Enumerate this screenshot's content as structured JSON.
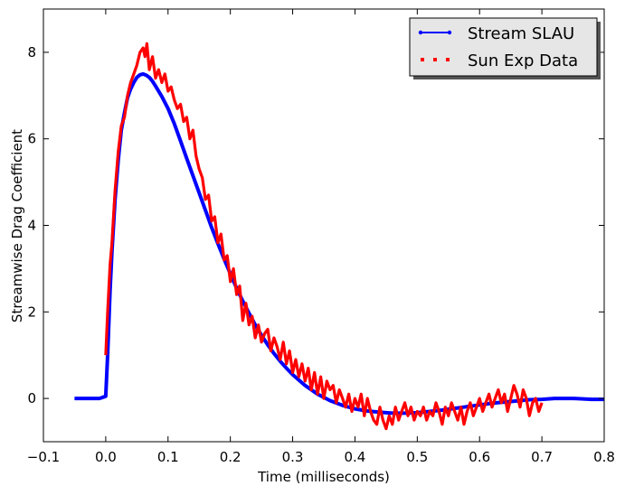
{
  "chart_data": {
    "type": "line",
    "title": "",
    "xlabel": "Time (milliseconds)",
    "ylabel": "Streamwise Drag Coefficient",
    "xlim": [
      -0.1,
      0.8
    ],
    "ylim": [
      -1,
      9
    ],
    "xticks": [
      -0.1,
      0.0,
      0.1,
      0.2,
      0.3,
      0.4,
      0.5,
      0.6,
      0.7,
      0.8
    ],
    "xtick_labels": [
      "−0.1",
      "0.0",
      "0.1",
      "0.2",
      "0.3",
      "0.4",
      "0.5",
      "0.6",
      "0.7",
      "0.8"
    ],
    "yticks": [
      0,
      2,
      4,
      6,
      8
    ],
    "ytick_labels": [
      "0",
      "2",
      "4",
      "6",
      "8"
    ],
    "grid": false,
    "legend_position": "top-right",
    "series": [
      {
        "name": "Stream SLAU",
        "color": "#0000ff",
        "style": "solid-dot",
        "x": [
          -0.05,
          -0.03,
          -0.01,
          0.0,
          0.003,
          0.007,
          0.01,
          0.015,
          0.02,
          0.025,
          0.03,
          0.035,
          0.04,
          0.045,
          0.05,
          0.055,
          0.06,
          0.065,
          0.07,
          0.075,
          0.08,
          0.09,
          0.1,
          0.11,
          0.12,
          0.13,
          0.14,
          0.15,
          0.16,
          0.17,
          0.18,
          0.19,
          0.2,
          0.21,
          0.22,
          0.23,
          0.24,
          0.25,
          0.26,
          0.27,
          0.28,
          0.29,
          0.3,
          0.32,
          0.34,
          0.36,
          0.38,
          0.4,
          0.42,
          0.44,
          0.46,
          0.48,
          0.5,
          0.52,
          0.54,
          0.56,
          0.58,
          0.6,
          0.62,
          0.65,
          0.68,
          0.7,
          0.72,
          0.75,
          0.78,
          0.8
        ],
        "y": [
          0.0,
          0.0,
          0.0,
          0.05,
          1.0,
          2.5,
          3.4,
          4.6,
          5.5,
          6.2,
          6.6,
          6.95,
          7.15,
          7.3,
          7.42,
          7.48,
          7.5,
          7.47,
          7.42,
          7.33,
          7.22,
          6.98,
          6.7,
          6.35,
          5.95,
          5.55,
          5.15,
          4.75,
          4.35,
          3.95,
          3.58,
          3.22,
          2.88,
          2.55,
          2.25,
          1.97,
          1.7,
          1.46,
          1.24,
          1.04,
          0.86,
          0.7,
          0.55,
          0.3,
          0.1,
          -0.05,
          -0.16,
          -0.24,
          -0.29,
          -0.32,
          -0.34,
          -0.34,
          -0.33,
          -0.3,
          -0.27,
          -0.23,
          -0.19,
          -0.15,
          -0.11,
          -0.07,
          -0.03,
          -0.02,
          0.0,
          0.0,
          -0.02,
          -0.02
        ]
      },
      {
        "name": "Sun Exp Data",
        "color": "#ff0000",
        "style": "dotted",
        "x": [
          0.0,
          0.003,
          0.007,
          0.01,
          0.015,
          0.02,
          0.025,
          0.03,
          0.035,
          0.04,
          0.045,
          0.05,
          0.055,
          0.06,
          0.063,
          0.066,
          0.07,
          0.075,
          0.08,
          0.085,
          0.09,
          0.095,
          0.1,
          0.105,
          0.11,
          0.115,
          0.12,
          0.125,
          0.13,
          0.135,
          0.14,
          0.145,
          0.15,
          0.155,
          0.16,
          0.165,
          0.17,
          0.175,
          0.18,
          0.185,
          0.19,
          0.195,
          0.2,
          0.205,
          0.21,
          0.215,
          0.22,
          0.225,
          0.23,
          0.235,
          0.24,
          0.245,
          0.25,
          0.255,
          0.26,
          0.265,
          0.27,
          0.275,
          0.28,
          0.285,
          0.29,
          0.295,
          0.3,
          0.305,
          0.31,
          0.315,
          0.32,
          0.325,
          0.33,
          0.335,
          0.34,
          0.345,
          0.35,
          0.355,
          0.36,
          0.365,
          0.37,
          0.375,
          0.38,
          0.385,
          0.39,
          0.395,
          0.4,
          0.405,
          0.41,
          0.415,
          0.42,
          0.425,
          0.43,
          0.435,
          0.44,
          0.445,
          0.45,
          0.455,
          0.46,
          0.465,
          0.47,
          0.475,
          0.48,
          0.485,
          0.49,
          0.495,
          0.5,
          0.505,
          0.51,
          0.515,
          0.52,
          0.525,
          0.53,
          0.535,
          0.54,
          0.545,
          0.55,
          0.555,
          0.56,
          0.565,
          0.57,
          0.575,
          0.58,
          0.585,
          0.59,
          0.595,
          0.6,
          0.605,
          0.61,
          0.615,
          0.62,
          0.625,
          0.63,
          0.635,
          0.64,
          0.645,
          0.65,
          0.655,
          0.66,
          0.665,
          0.67,
          0.675,
          0.68,
          0.685,
          0.69,
          0.695,
          0.7
        ],
        "y": [
          1.0,
          2.0,
          3.1,
          3.6,
          4.8,
          5.7,
          6.3,
          6.5,
          7.0,
          7.3,
          7.5,
          7.7,
          8.0,
          8.1,
          7.9,
          8.2,
          7.6,
          7.9,
          7.4,
          7.6,
          7.3,
          7.5,
          7.1,
          7.2,
          6.9,
          6.7,
          6.8,
          6.4,
          6.5,
          6.0,
          6.2,
          5.6,
          5.3,
          5.1,
          4.6,
          4.7,
          4.1,
          4.2,
          3.6,
          3.8,
          3.2,
          3.3,
          2.7,
          3.0,
          2.4,
          2.6,
          1.8,
          2.2,
          1.7,
          1.9,
          1.4,
          1.7,
          1.3,
          1.5,
          1.6,
          1.1,
          1.4,
          1.2,
          0.9,
          1.3,
          0.8,
          1.1,
          0.6,
          0.9,
          0.5,
          0.8,
          0.4,
          0.7,
          0.2,
          0.6,
          0.1,
          0.5,
          0.0,
          0.4,
          0.2,
          0.3,
          -0.1,
          0.2,
          0.0,
          -0.2,
          0.1,
          -0.3,
          0.0,
          -0.2,
          0.1,
          -0.4,
          0.0,
          -0.3,
          -0.5,
          -0.6,
          -0.2,
          -0.5,
          -0.7,
          -0.4,
          -0.6,
          -0.2,
          -0.5,
          -0.3,
          -0.1,
          -0.4,
          -0.2,
          -0.5,
          -0.3,
          -0.4,
          -0.2,
          -0.5,
          -0.3,
          -0.4,
          -0.1,
          -0.3,
          -0.6,
          -0.2,
          -0.4,
          -0.1,
          -0.3,
          -0.5,
          -0.2,
          -0.6,
          -0.3,
          -0.1,
          -0.4,
          -0.2,
          0.0,
          -0.3,
          -0.1,
          0.1,
          -0.2,
          0.0,
          0.2,
          -0.1,
          0.1,
          -0.3,
          0.0,
          0.3,
          0.1,
          -0.2,
          0.2,
          0.0,
          -0.4,
          -0.1,
          0.0,
          -0.3,
          -0.1
        ]
      }
    ]
  }
}
